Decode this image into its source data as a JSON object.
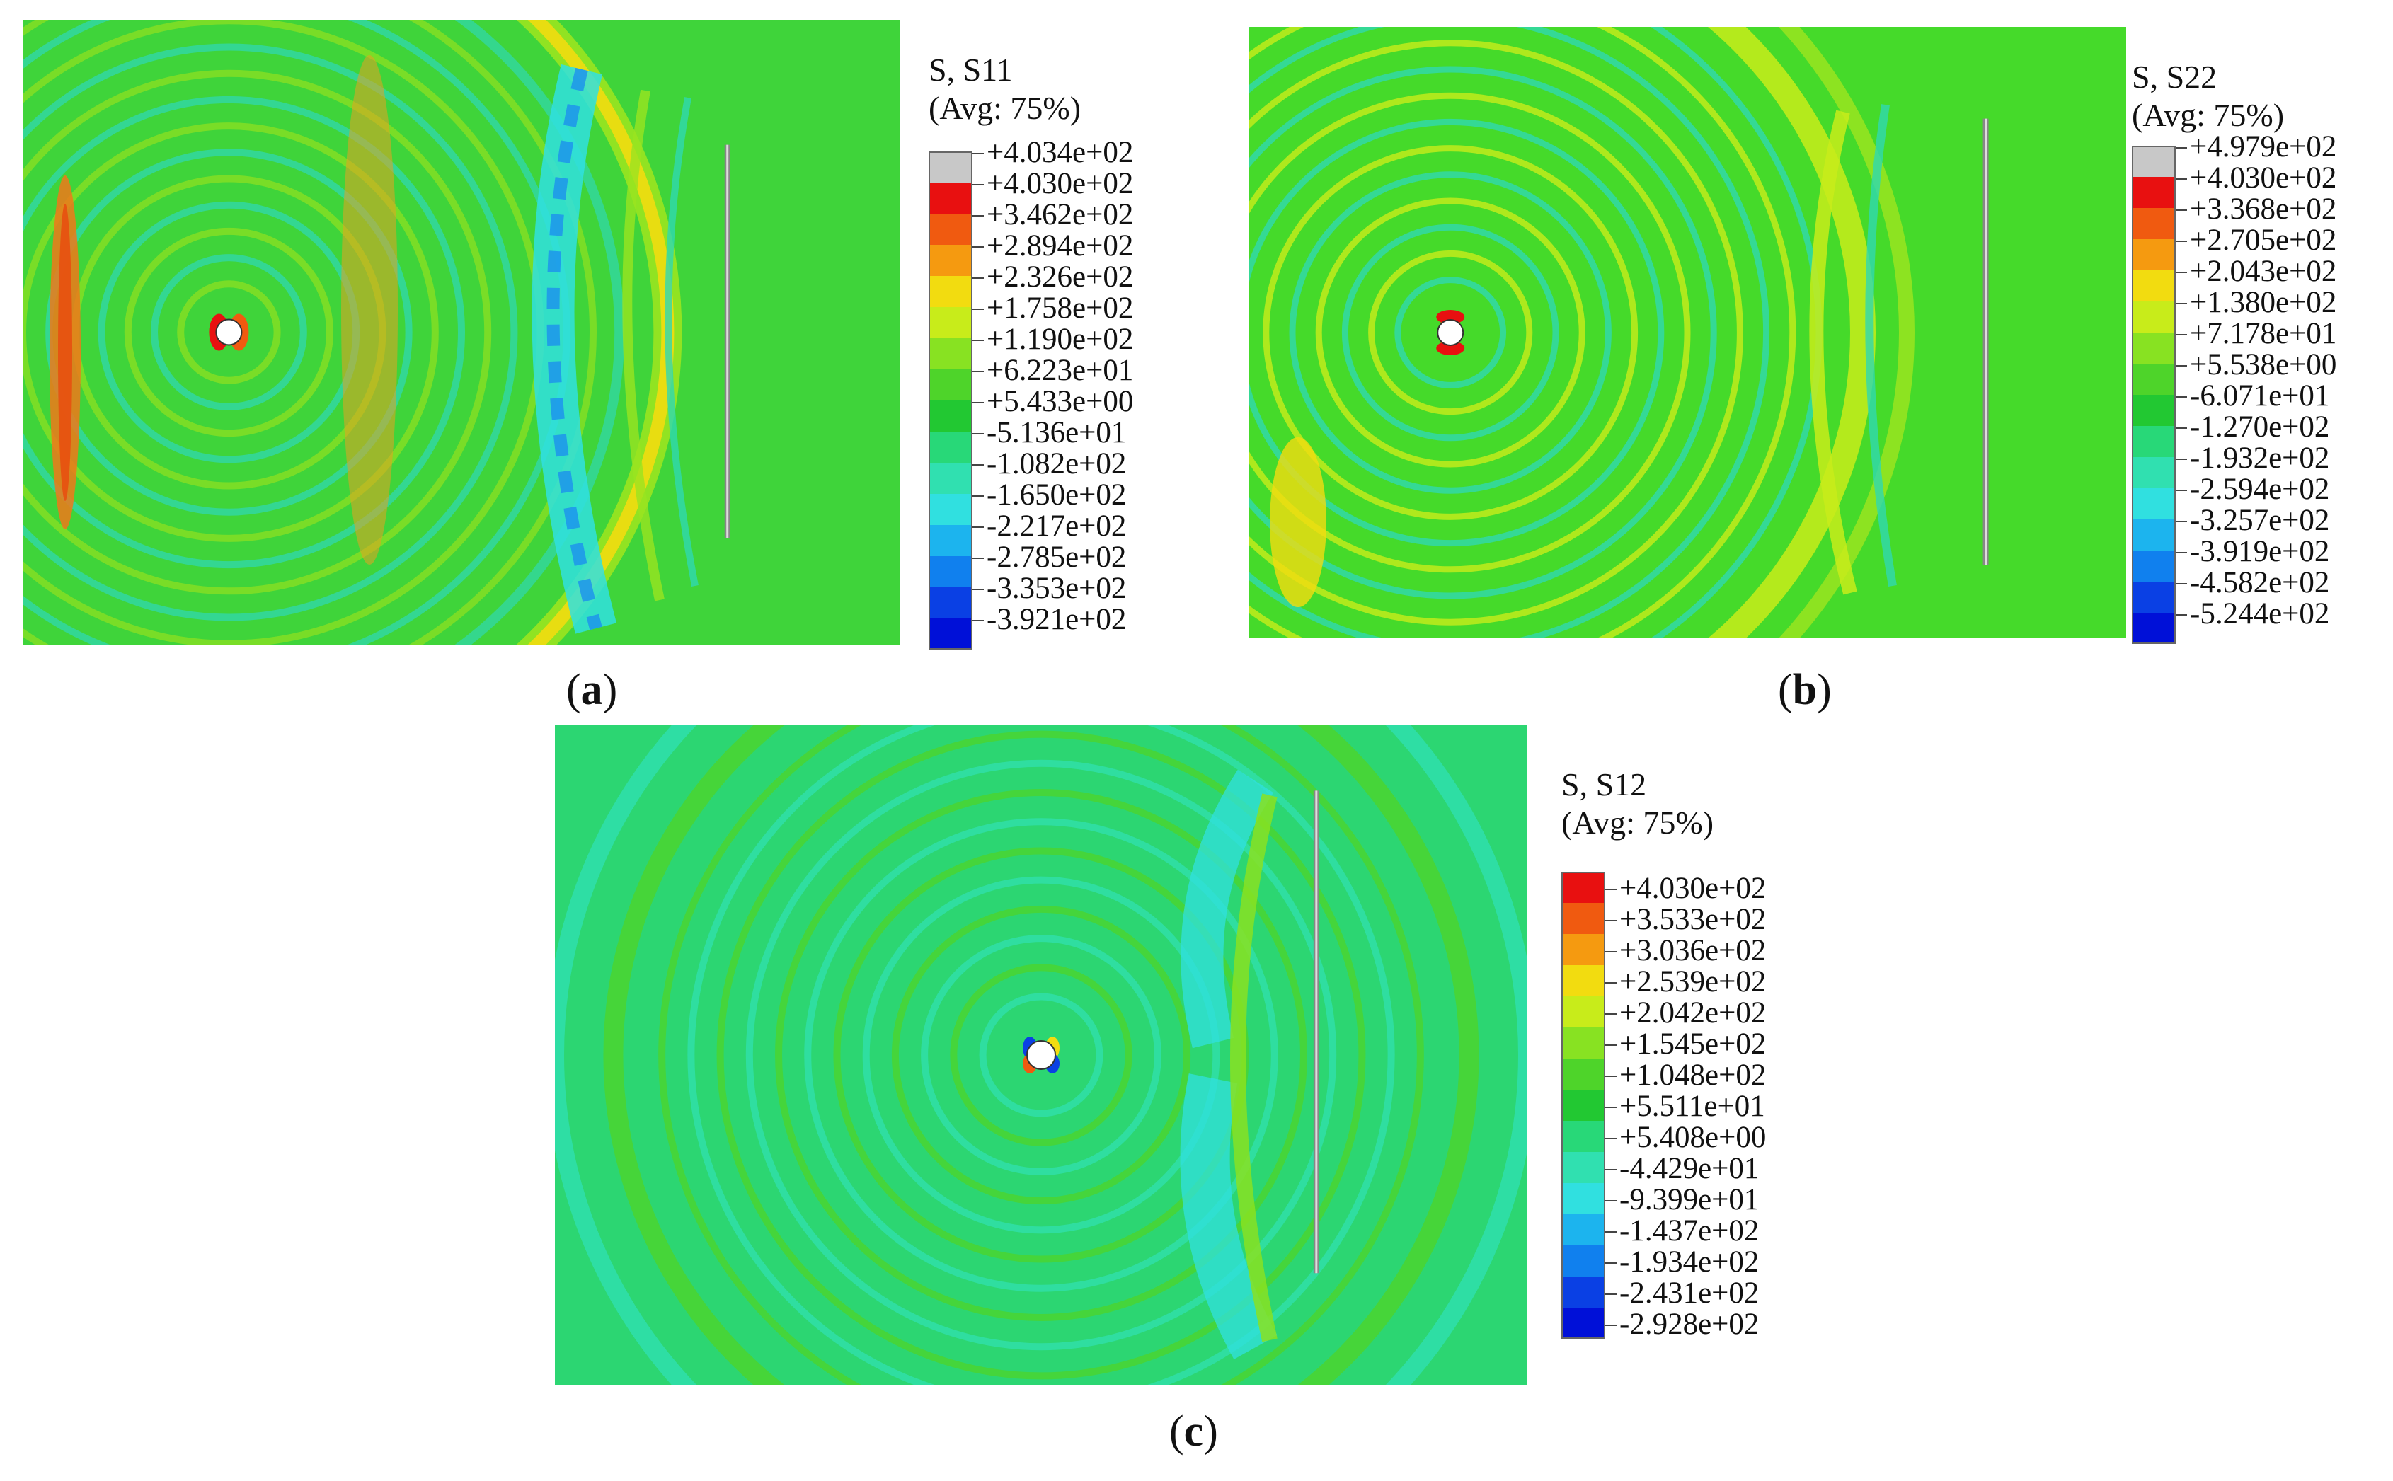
{
  "panels": [
    {
      "id": "a",
      "caption_letter": "a",
      "legend_title_1": "S, S11",
      "legend_title_2": "(Avg: 75%)",
      "legend_values": [
        "+4.034e+02",
        "+4.030e+02",
        "+3.462e+02",
        "+2.894e+02",
        "+2.326e+02",
        "+1.758e+02",
        "+1.190e+02",
        "+6.223e+01",
        "+5.433e+00",
        "-5.136e+01",
        "-1.082e+02",
        "-1.650e+02",
        "-2.217e+02",
        "-2.785e+02",
        "-3.353e+02",
        "-3.921e+02"
      ],
      "legend_colors": [
        "#c8c8c8",
        "#e81010",
        "#f05a10",
        "#f59a10",
        "#f2dc10",
        "#c8ec1a",
        "#88e222",
        "#4ed42a",
        "#22c832",
        "#28d878",
        "#30e0b0",
        "#30e0e0",
        "#1cb4ee",
        "#1080ee",
        "#0a40e4",
        "#0010d8"
      ],
      "background": "#3fd43a"
    },
    {
      "id": "b",
      "caption_letter": "b",
      "legend_title_1": "S, S22",
      "legend_title_2": "(Avg: 75%)",
      "legend_values": [
        "+4.979e+02",
        "+4.030e+02",
        "+3.368e+02",
        "+2.705e+02",
        "+2.043e+02",
        "+1.380e+02",
        "+7.178e+01",
        "+5.538e+00",
        "-6.071e+01",
        "-1.270e+02",
        "-1.932e+02",
        "-2.594e+02",
        "-3.257e+02",
        "-3.919e+02",
        "-4.582e+02",
        "-5.244e+02"
      ],
      "legend_colors": [
        "#c8c8c8",
        "#e81010",
        "#f05a10",
        "#f59a10",
        "#f2dc10",
        "#c8ec1a",
        "#88e222",
        "#4ed42a",
        "#22c832",
        "#28d878",
        "#30e0b0",
        "#30e0e0",
        "#1cb4ee",
        "#1080ee",
        "#0a40e4",
        "#0010d8"
      ],
      "background": "#45da2a"
    },
    {
      "id": "c",
      "caption_letter": "c",
      "legend_title_1": "S, S12",
      "legend_title_2": "(Avg: 75%)",
      "legend_values": [
        "+4.030e+02",
        "+3.533e+02",
        "+3.036e+02",
        "+2.539e+02",
        "+2.042e+02",
        "+1.545e+02",
        "+1.048e+02",
        "+5.511e+01",
        "+5.408e+00",
        "-4.429e+01",
        "-9.399e+01",
        "-1.437e+02",
        "-1.934e+02",
        "-2.431e+02",
        "-2.928e+02"
      ],
      "legend_colors": [
        "#e81010",
        "#f05a10",
        "#f59a10",
        "#f2dc10",
        "#c8ec1a",
        "#88e222",
        "#4ed42a",
        "#22c832",
        "#28d878",
        "#30e0b0",
        "#30e0e0",
        "#1cb4ee",
        "#1080ee",
        "#0a40e4",
        "#0010d8"
      ],
      "background": "#2cd672"
    }
  ]
}
